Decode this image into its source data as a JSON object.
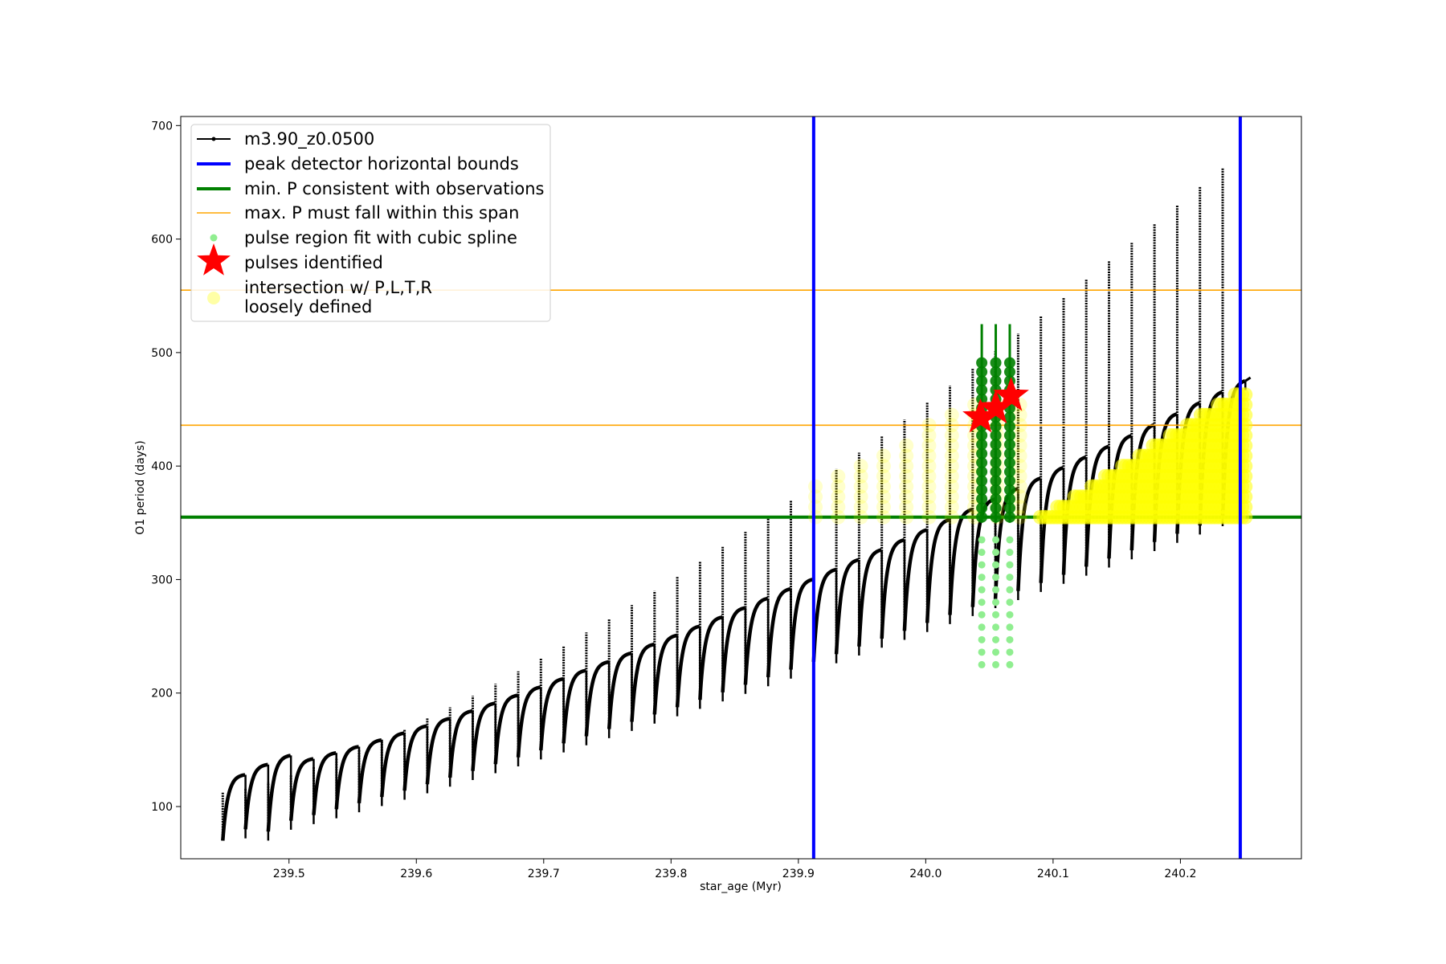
{
  "chart_data": {
    "type": "scatter",
    "title": "",
    "xlabel": "star_age (Myr)",
    "ylabel": "O1 period (days)",
    "xlim": [
      239.415,
      240.295
    ],
    "ylim": [
      54,
      708
    ],
    "xticks": [
      239.5,
      239.6,
      239.7,
      239.8,
      239.9,
      240.0,
      240.1,
      240.2
    ],
    "xtick_labels": [
      "239.5",
      "239.6",
      "239.7",
      "239.8",
      "239.9",
      "240.0",
      "240.1",
      "240.2"
    ],
    "yticks": [
      100,
      200,
      300,
      400,
      500,
      600,
      700
    ],
    "ytick_labels": [
      "100",
      "200",
      "300",
      "400",
      "500",
      "600",
      "700"
    ],
    "grid": false,
    "legend_position": "upper-left",
    "vertical_lines": [
      239.912,
      240.247
    ],
    "horizontal_lines": [
      {
        "series": "min. P consistent with observations",
        "y": 355
      },
      {
        "series": "max. P must fall within this span",
        "y": 436
      },
      {
        "series": "max. P must fall within this span",
        "y": 555
      }
    ],
    "track": {
      "x_start": 239.448,
      "x_end": 240.251,
      "n_pulses": 45,
      "pulse_start_periods": [
        70,
        128,
        80,
        137,
        78,
        145
      ],
      "envelope_min": [
        65,
        355
      ],
      "envelope_max": [
        130,
        475
      ],
      "spike_max": [
        113,
        663
      ]
    },
    "pulses_identified": [
      {
        "x": 240.043,
        "y": 443
      },
      {
        "x": 240.055,
        "y": 451
      },
      {
        "x": 240.067,
        "y": 462
      }
    ],
    "pulse_region_x": [
      240.044,
      240.055,
      240.066
    ],
    "pulse_region_y_range": [
      225,
      525
    ],
    "loose_intersection_x_range": [
      239.912,
      240.09
    ],
    "dense_intersection_x_range": [
      240.09,
      240.251
    ],
    "series": [
      {
        "name": "m3.90_z0.0500",
        "color": "#000000",
        "style": "line-dots"
      },
      {
        "name": "peak detector horizontal bounds",
        "color": "#0000ff",
        "style": "vline"
      },
      {
        "name": "min. P consistent with observations",
        "color": "#008000",
        "style": "hline"
      },
      {
        "name": "max. P must fall within this span",
        "color": "#ffa500",
        "style": "hline"
      },
      {
        "name": "pulse region fit with cubic spline",
        "color": "#90ee90",
        "style": "dots"
      },
      {
        "name": "pulses identified",
        "color": "#ff0000",
        "style": "star"
      },
      {
        "name": "intersection w/ P,L,T,R\nloosely defined",
        "color": "#ffff00",
        "style": "dots"
      }
    ]
  },
  "legend": {
    "items": [
      {
        "label_lines": [
          "m3.90_z0.0500"
        ]
      },
      {
        "label_lines": [
          "peak detector horizontal bounds"
        ]
      },
      {
        "label_lines": [
          "min. P consistent with observations"
        ]
      },
      {
        "label_lines": [
          "max. P must fall within this span"
        ]
      },
      {
        "label_lines": [
          "pulse region fit with cubic spline"
        ]
      },
      {
        "label_lines": [
          "pulses identified"
        ]
      },
      {
        "label_lines": [
          "intersection w/ P,L,T,R",
          "loosely defined"
        ]
      }
    ]
  }
}
